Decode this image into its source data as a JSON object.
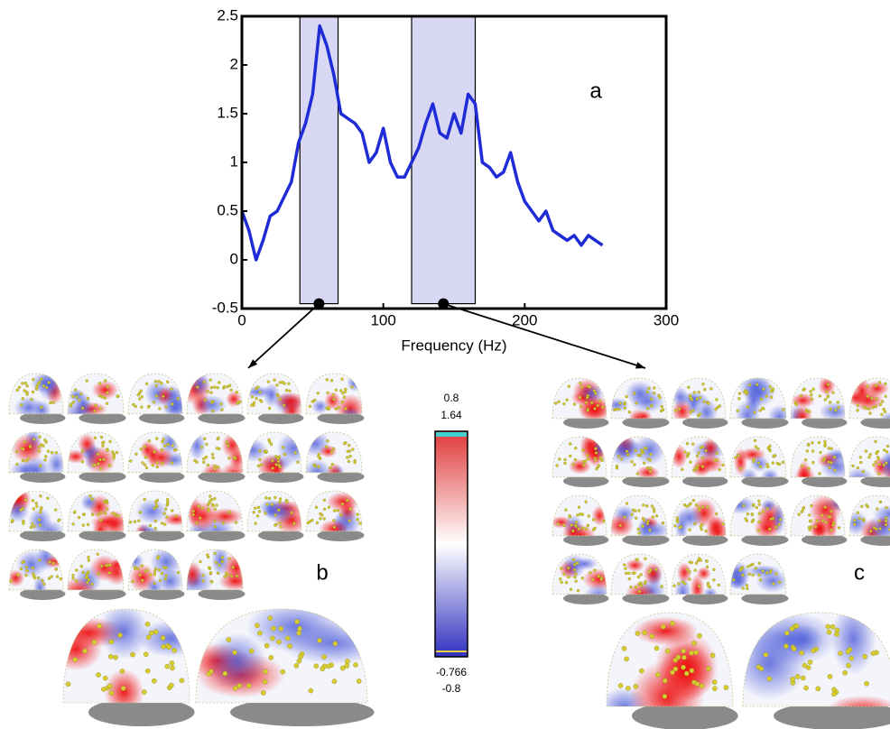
{
  "chart_data": {
    "type": "line",
    "x_label": "Frequency (Hz)",
    "panel_label": "a",
    "x": [
      0,
      5,
      10,
      15,
      20,
      25,
      30,
      35,
      40,
      45,
      50,
      55,
      60,
      65,
      70,
      75,
      80,
      85,
      90,
      95,
      100,
      105,
      110,
      115,
      120,
      125,
      130,
      135,
      140,
      145,
      150,
      155,
      160,
      165,
      170,
      175,
      180,
      185,
      190,
      195,
      200,
      205,
      210,
      215,
      220,
      225,
      230,
      235,
      240,
      245,
      250,
      255
    ],
    "series": [
      {
        "color": "#1f2bd6",
        "values": [
          0.5,
          0.3,
          0.0,
          0.2,
          0.45,
          0.5,
          0.65,
          0.8,
          1.2,
          1.4,
          1.7,
          2.4,
          2.2,
          1.9,
          1.5,
          1.45,
          1.4,
          1.3,
          1.0,
          1.1,
          1.35,
          1.0,
          0.85,
          0.85,
          1.0,
          1.15,
          1.4,
          1.6,
          1.3,
          1.25,
          1.5,
          1.3,
          1.7,
          1.6,
          1.0,
          0.95,
          0.85,
          0.9,
          1.1,
          0.8,
          0.6,
          0.5,
          0.4,
          0.5,
          0.3,
          0.25,
          0.2,
          0.25,
          0.15,
          0.25,
          0.2,
          0.15
        ]
      }
    ],
    "xlim": [
      0,
      300
    ],
    "ylim": [
      -0.5,
      2.5
    ],
    "xticks": [
      0,
      100,
      200,
      300
    ],
    "yticks": [
      -0.5,
      0,
      0.5,
      1,
      1.5,
      2,
      2.5
    ],
    "highlight_bands": [
      [
        41,
        68
      ],
      [
        120,
        165
      ]
    ],
    "band_ylim": [
      -0.45,
      2.5
    ],
    "band_color": "#d8d8f4"
  },
  "panels": {
    "b": "b",
    "c": "c"
  },
  "colorbar": {
    "labels_top": [
      "0.8",
      "1.64"
    ],
    "labels_bottom": [
      "-0.766",
      "-0.8"
    ]
  }
}
